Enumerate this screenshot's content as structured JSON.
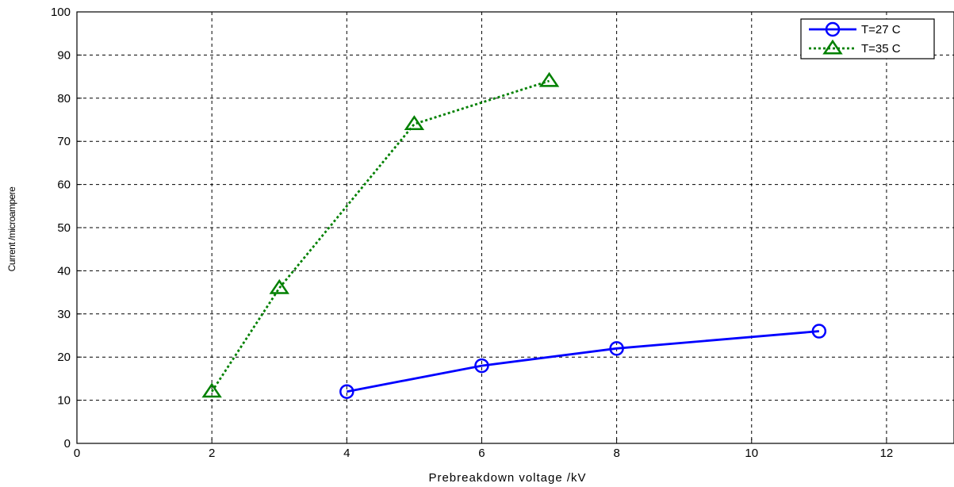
{
  "chart_data": {
    "type": "line",
    "title": "",
    "xlabel": "Prebreakdown voltage /kV",
    "ylabel": "Current /microampere",
    "xlim": [
      0,
      13
    ],
    "ylim": [
      0,
      100
    ],
    "x_ticks": [
      0,
      2,
      4,
      6,
      8,
      10,
      12
    ],
    "y_ticks": [
      0,
      10,
      20,
      30,
      40,
      50,
      60,
      70,
      80,
      90,
      100
    ],
    "grid": true,
    "legend_position": "top-right",
    "series": [
      {
        "name": "T=27 C",
        "color": "#0000ff",
        "line_style": "solid",
        "marker": "circle",
        "x": [
          4,
          6,
          8,
          11
        ],
        "y": [
          12,
          18,
          22,
          26
        ]
      },
      {
        "name": "T=35 C",
        "color": "#008000",
        "line_style": "dotted",
        "marker": "triangle",
        "x": [
          2,
          3,
          5,
          7
        ],
        "y": [
          12,
          36,
          74,
          84
        ]
      }
    ]
  }
}
